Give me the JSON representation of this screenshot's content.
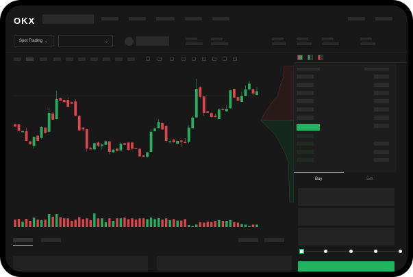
{
  "brand": {
    "logo": "OKX"
  },
  "toolbar": {
    "market_selector": "Spot Trading",
    "pair_selector": ""
  },
  "trade_panel": {
    "tabs": [
      {
        "label": "Buy",
        "active": true
      },
      {
        "label": "Sell",
        "active": false
      }
    ],
    "slider_value_percent": 0,
    "slider_steps": [
      0,
      25,
      50,
      75,
      100
    ]
  },
  "colors": {
    "up": "#27ae60",
    "down": "#d9464b",
    "accent": "#21b35f",
    "background": "#181818"
  },
  "candles_ohlc": [
    [
      185,
      188,
      174,
      175
    ],
    [
      185,
      187,
      155,
      157
    ],
    [
      150,
      158,
      149,
      155
    ],
    [
      155,
      170,
      110,
      112
    ],
    [
      110,
      112,
      95,
      98
    ],
    [
      90,
      132,
      78,
      130
    ],
    [
      135,
      138,
      110,
      112
    ],
    [
      125,
      178,
      122,
      172
    ],
    [
      170,
      172,
      144,
      148
    ],
    [
      152,
      258,
      150,
      235
    ],
    [
      232,
      240,
      204,
      205
    ],
    [
      208,
      332,
      207,
      295
    ],
    [
      300,
      303,
      287,
      288
    ],
    [
      292,
      297,
      278,
      282
    ],
    [
      292,
      303,
      260,
      262
    ],
    [
      282,
      284,
      274,
      275
    ],
    [
      285,
      295,
      220,
      222
    ],
    [
      222,
      225,
      156,
      158
    ],
    [
      170,
      172,
      155,
      162
    ],
    [
      163,
      165,
      65,
      78
    ],
    [
      80,
      85,
      73,
      75
    ],
    [
      75,
      105,
      72,
      102
    ],
    [
      105,
      110,
      85,
      90
    ],
    [
      90,
      100,
      75,
      96
    ],
    [
      95,
      114,
      94,
      110
    ],
    [
      110,
      112,
      54,
      64
    ],
    [
      62,
      76,
      60,
      74
    ],
    [
      78,
      80,
      62,
      68
    ],
    [
      70,
      104,
      69,
      100
    ],
    [
      102,
      104,
      94,
      95
    ],
    [
      105,
      107,
      70,
      73
    ],
    [
      105,
      108,
      70,
      78
    ],
    [
      80,
      82,
      76,
      77
    ],
    [
      77,
      80,
      43,
      44
    ],
    [
      48,
      50,
      41,
      42
    ],
    [
      42,
      64,
      38,
      62
    ],
    [
      64,
      165,
      63,
      152
    ],
    [
      155,
      170,
      154,
      167
    ],
    [
      168,
      208,
      167,
      195
    ],
    [
      190,
      192,
      160,
      162
    ],
    [
      178,
      182,
      104,
      112
    ],
    [
      108,
      118,
      100,
      111
    ],
    [
      118,
      120,
      104,
      106
    ],
    [
      100,
      114,
      99,
      112
    ],
    [
      114,
      116,
      85,
      108
    ],
    [
      108,
      124,
      102,
      103
    ],
    [
      108,
      180,
      102,
      170
    ],
    [
      168,
      220,
      167,
      214
    ],
    [
      215,
      385,
      214,
      340
    ],
    [
      348,
      352,
      300,
      305
    ],
    [
      307,
      310,
      222,
      235
    ],
    [
      242,
      244,
      234,
      236
    ],
    [
      234,
      237,
      214,
      217
    ],
    [
      222,
      230,
      214,
      217
    ],
    [
      208,
      255,
      207,
      250
    ],
    [
      253,
      260,
      245,
      248
    ],
    [
      242,
      270,
      240,
      253
    ],
    [
      255,
      335,
      254,
      334
    ],
    [
      340,
      342,
      300,
      302
    ],
    [
      303,
      305,
      287,
      288
    ],
    [
      283,
      328,
      282,
      310
    ],
    [
      310,
      355,
      309,
      338
    ],
    [
      338,
      375,
      337,
      363
    ],
    [
      339,
      342,
      308,
      320
    ],
    [
      313,
      348,
      312,
      330
    ]
  ],
  "volumes": [
    30,
    33,
    22,
    33,
    25,
    38,
    30,
    28,
    30,
    52,
    42,
    52,
    40,
    35,
    35,
    25,
    30,
    40,
    32,
    35,
    28,
    55,
    35,
    35,
    20,
    35,
    25,
    35,
    35,
    38,
    32,
    35,
    30,
    35,
    35,
    32,
    38,
    32,
    36,
    30,
    35,
    28,
    32,
    26,
    26,
    32,
    8,
    5,
    10,
    20,
    18,
    22,
    20,
    25,
    28,
    25,
    25,
    28,
    20,
    18,
    12,
    10,
    5,
    10,
    10
  ]
}
